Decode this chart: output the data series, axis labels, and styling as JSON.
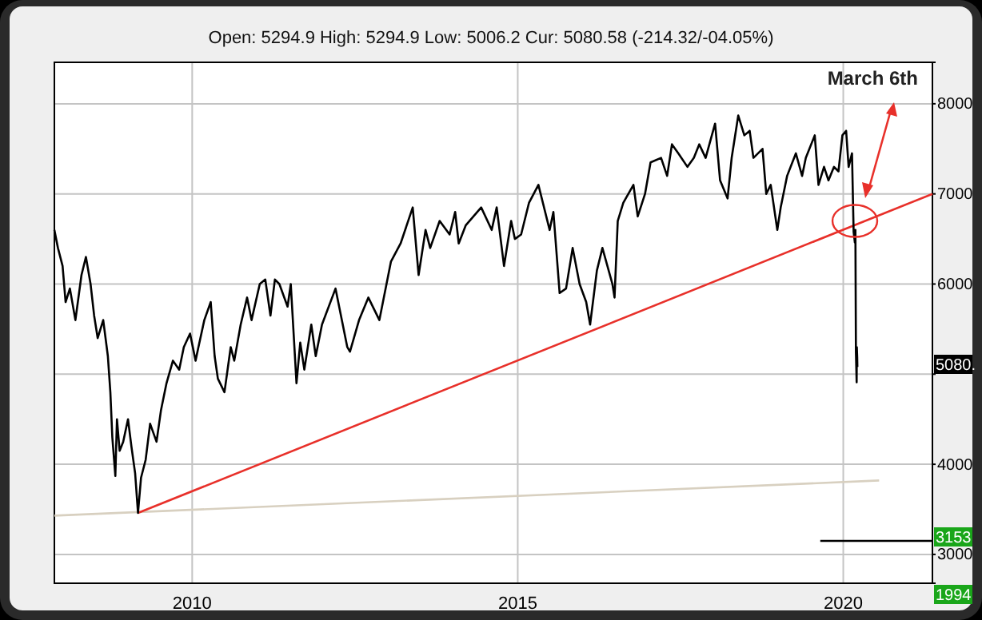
{
  "chart_data": {
    "type": "line",
    "title": "Open: 5294.9 High: 5294.9 Low: 5006.2 Cur: 5080.58 (-214.32/-04.05%)",
    "xlim": [
      "2007-11-20",
      "2021-05-15"
    ],
    "xticks": [
      {
        "value": "2010-01-01",
        "label": "2010"
      },
      {
        "value": "2015-01-01",
        "label": "2015"
      },
      {
        "value": "2020-01-01",
        "label": "2020"
      }
    ],
    "ylim": [
      2680,
      8460
    ],
    "yticks": [
      3000,
      4000,
      {
        "value": 5000,
        "label": null
      },
      6000,
      7000,
      8000
    ],
    "grid": true,
    "marker": "none",
    "line_style": "solid",
    "series": [
      {
        "color": "#d8d0c0",
        "x": [
          "2007-11-20",
          "2020-07-20"
        ],
        "values": [
          3430,
          3820
        ]
      },
      {
        "color": "#e8302a",
        "x": [
          "2009-03-03",
          "2021-05-15"
        ],
        "values": [
          3460,
          7000
        ]
      },
      {
        "color": "#000000",
        "x": [
          "2019-08-25",
          "2021-05-15"
        ],
        "values": [
          3150,
          3150
        ]
      },
      {
        "color": "#000000",
        "x": [
          "2007-11-20",
          "2007-12-10",
          "2008-01-05",
          "2008-01-22",
          "2008-02-15",
          "2008-03-17",
          "2008-04-20",
          "2008-05-15",
          "2008-06-10",
          "2008-06-30",
          "2008-07-20",
          "2008-08-20",
          "2008-09-15",
          "2008-09-29",
          "2008-10-10",
          "2008-10-27",
          "2008-11-05",
          "2008-11-20",
          "2008-12-10",
          "2009-01-06",
          "2009-01-25",
          "2009-02-15",
          "2009-03-03",
          "2009-03-20",
          "2009-04-15",
          "2009-05-10",
          "2009-06-15",
          "2009-07-10",
          "2009-08-10",
          "2009-09-15",
          "2009-10-20",
          "2009-11-15",
          "2009-12-20",
          "2010-01-20",
          "2010-02-05",
          "2010-03-10",
          "2010-04-15",
          "2010-05-07",
          "2010-05-25",
          "2010-07-01",
          "2010-08-05",
          "2010-08-25",
          "2010-09-30",
          "2010-11-05",
          "2010-11-30",
          "2011-01-15",
          "2011-02-15",
          "2011-03-16",
          "2011-04-10",
          "2011-05-05",
          "2011-06-20",
          "2011-07-08",
          "2011-08-09",
          "2011-08-30",
          "2011-09-22",
          "2011-10-31",
          "2011-11-25",
          "2011-12-30",
          "2012-03-15",
          "2012-05-20",
          "2012-06-04",
          "2012-07-25",
          "2012-09-15",
          "2012-11-16",
          "2013-01-20",
          "2013-03-15",
          "2013-05-22",
          "2013-06-24",
          "2013-08-02",
          "2013-08-28",
          "2013-10-20",
          "2013-12-15",
          "2014-01-15",
          "2014-02-04",
          "2014-03-15",
          "2014-06-10",
          "2014-08-08",
          "2014-09-05",
          "2014-10-16",
          "2014-11-25",
          "2014-12-16",
          "2015-01-20",
          "2015-03-05",
          "2015-04-27",
          "2015-06-29",
          "2015-07-20",
          "2015-08-24",
          "2015-09-29",
          "2015-11-05",
          "2015-12-14",
          "2016-01-20",
          "2016-02-11",
          "2016-03-20",
          "2016-04-20",
          "2016-06-15",
          "2016-06-27",
          "2016-07-15",
          "2016-08-15",
          "2016-10-11",
          "2016-11-04",
          "2016-12-15",
          "2017-01-15",
          "2017-03-15",
          "2017-04-18",
          "2017-05-15",
          "2017-06-20",
          "2017-08-10",
          "2017-09-15",
          "2017-10-15",
          "2017-11-20",
          "2018-01-12",
          "2018-02-09",
          "2018-03-23",
          "2018-04-15",
          "2018-05-22",
          "2018-06-25",
          "2018-07-25",
          "2018-08-15",
          "2018-09-10",
          "2018-10-05",
          "2018-10-26",
          "2018-11-20",
          "2018-12-27",
          "2019-01-15",
          "2019-02-20",
          "2019-04-10",
          "2019-05-15",
          "2019-06-05",
          "2019-07-25",
          "2019-08-15",
          "2019-09-15",
          "2019-10-10",
          "2019-11-10",
          "2019-12-05",
          "2019-12-27",
          "2020-01-17",
          "2020-01-31",
          "2020-02-19",
          "2020-02-28",
          "2020-03-06",
          "2020-03-09",
          "2020-03-12",
          "2020-03-16",
          "2020-03-17",
          "2020-03-19",
          "2020-03-20"
        ],
        "values": [
          6600,
          6400,
          6200,
          5800,
          5950,
          5600,
          6100,
          6300,
          6000,
          5650,
          5400,
          5600,
          5200,
          4800,
          4300,
          3870,
          4500,
          4150,
          4250,
          4500,
          4200,
          3900,
          3460,
          3850,
          4050,
          4450,
          4250,
          4600,
          4900,
          5150,
          5050,
          5300,
          5450,
          5150,
          5300,
          5600,
          5800,
          5200,
          4950,
          4800,
          5300,
          5150,
          5550,
          5850,
          5600,
          6000,
          6050,
          5650,
          6050,
          6000,
          5750,
          6000,
          4900,
          5350,
          5050,
          5550,
          5200,
          5550,
          5950,
          5300,
          5250,
          5600,
          5850,
          5600,
          6250,
          6450,
          6850,
          6100,
          6600,
          6400,
          6700,
          6550,
          6800,
          6450,
          6650,
          6850,
          6600,
          6850,
          6200,
          6700,
          6500,
          6550,
          6900,
          7100,
          6600,
          6800,
          5900,
          5950,
          6400,
          6000,
          5800,
          5550,
          6150,
          6400,
          6000,
          5850,
          6700,
          6900,
          7100,
          6750,
          7000,
          7350,
          7400,
          7200,
          7550,
          7450,
          7300,
          7400,
          7550,
          7400,
          7780,
          7150,
          6950,
          7400,
          7870,
          7650,
          7700,
          7400,
          7450,
          7500,
          7000,
          7100,
          6600,
          6850,
          7200,
          7450,
          7200,
          7400,
          7650,
          7100,
          7300,
          7150,
          7300,
          7250,
          7650,
          7700,
          7300,
          7450,
          6580,
          6460,
          6600,
          5240,
          4910,
          5300,
          5190,
          5080
        ]
      }
    ],
    "annotations": [
      "March 6th",
      "5080.",
      "3153",
      "1994"
    ]
  }
}
